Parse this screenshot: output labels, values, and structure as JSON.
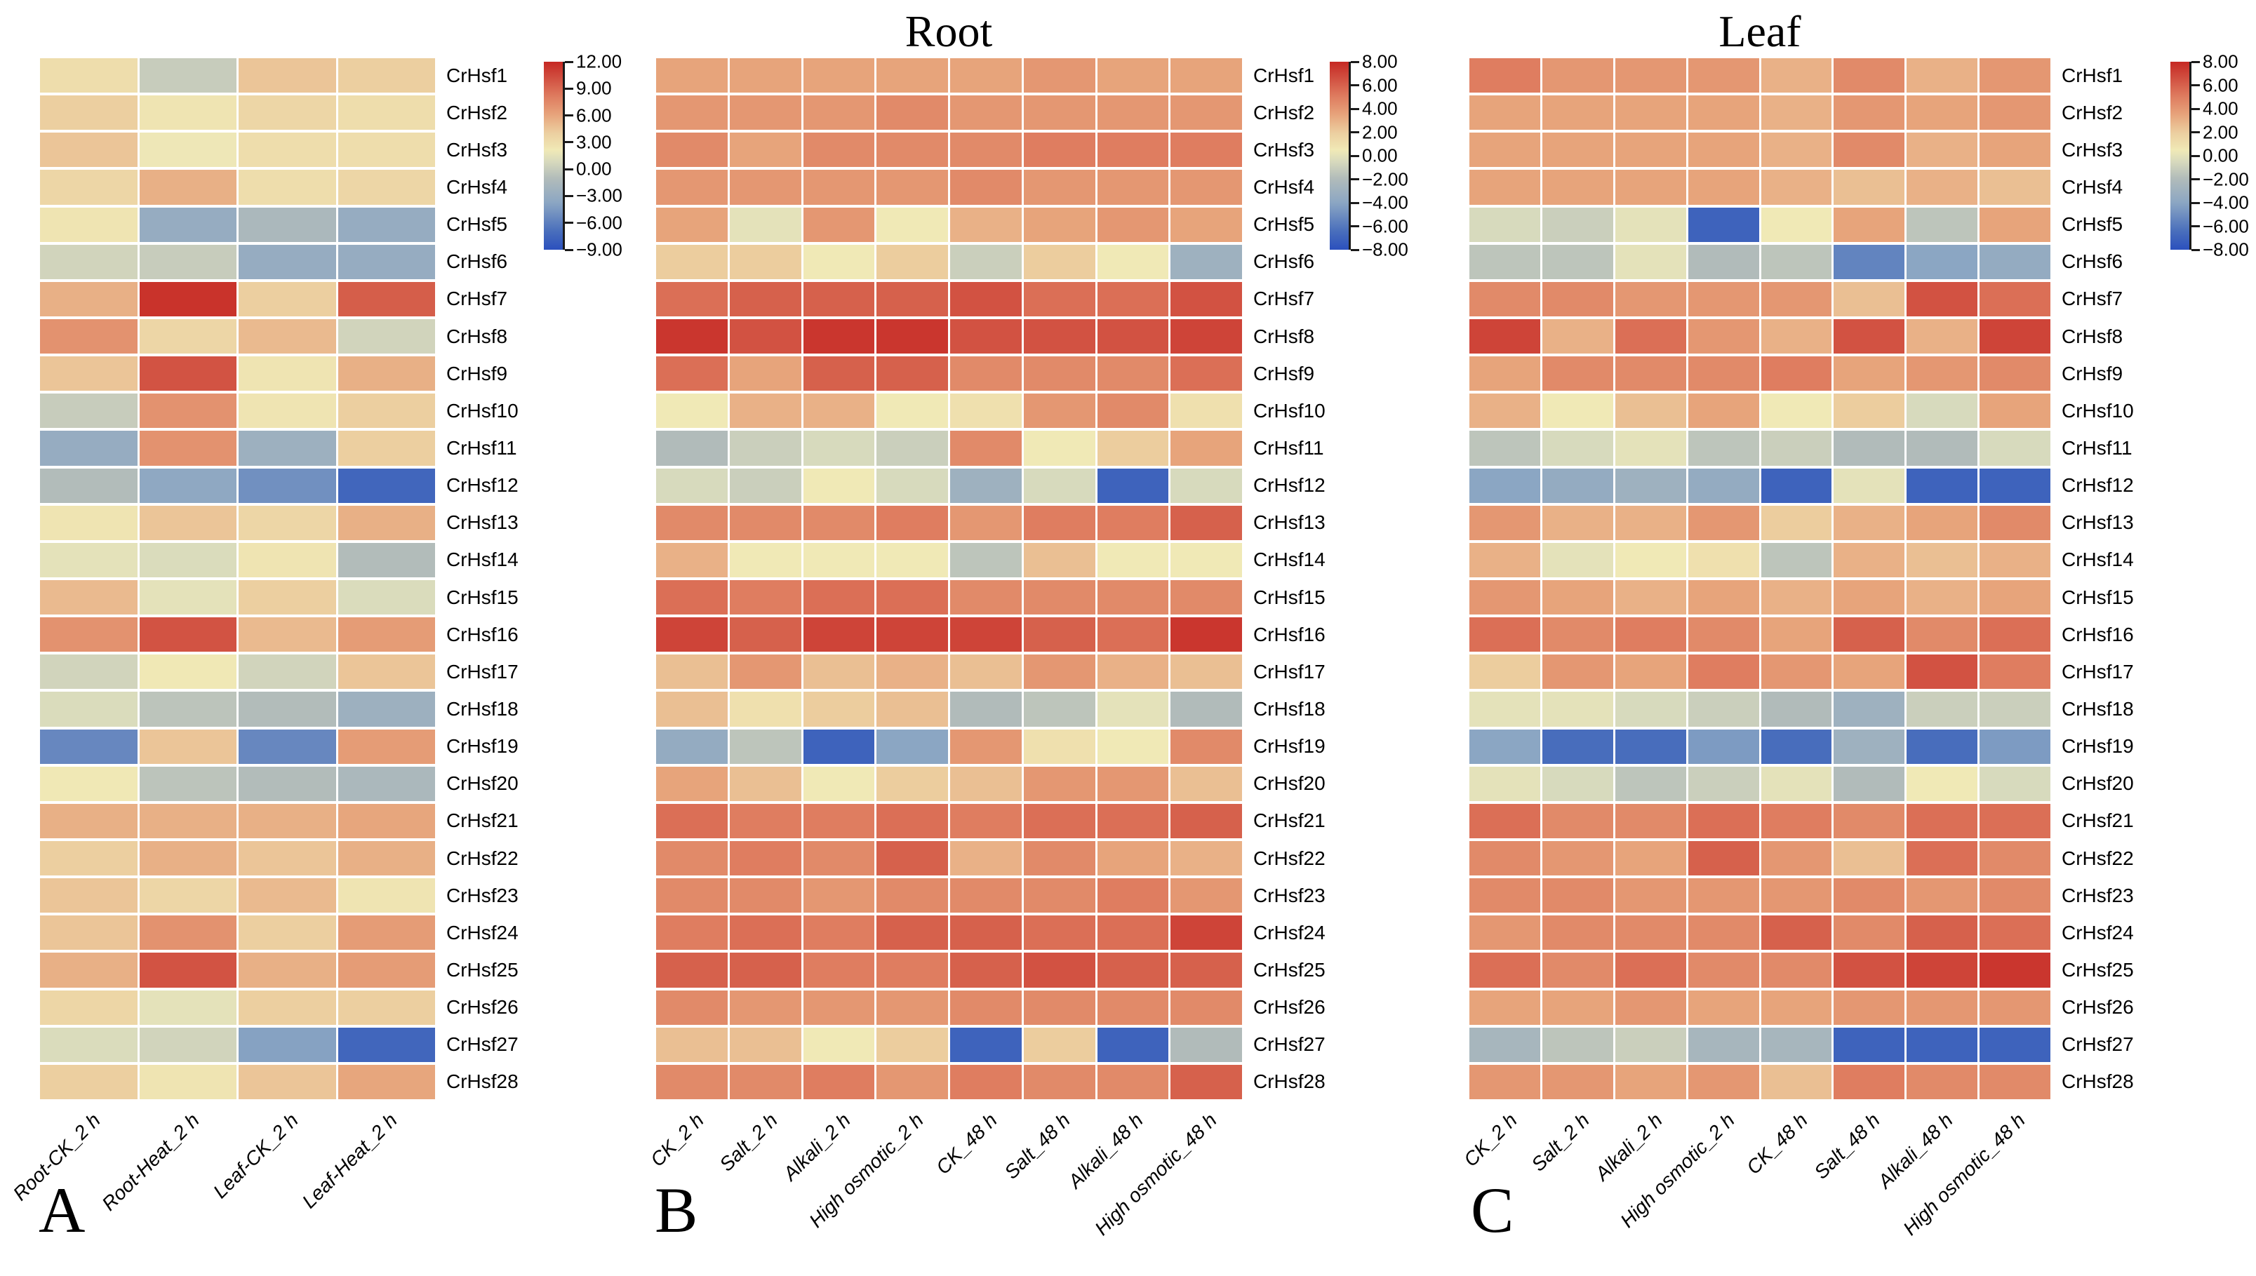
{
  "figure": {
    "background": "#ffffff",
    "colormap": {
      "name": "red-yellow-blue-heatmap",
      "stops": [
        [
          0.0,
          "#2b50bd"
        ],
        [
          0.1,
          "#4a6fbc"
        ],
        [
          0.25,
          "#8ba6c3"
        ],
        [
          0.38,
          "#b2bcba"
        ],
        [
          0.47,
          "#d8dabd"
        ],
        [
          0.53,
          "#f0e9b6"
        ],
        [
          0.62,
          "#eccfa0"
        ],
        [
          0.72,
          "#e7a37b"
        ],
        [
          0.82,
          "#de7a5e"
        ],
        [
          0.92,
          "#d04c3e"
        ],
        [
          1.0,
          "#c62823"
        ]
      ]
    }
  },
  "chart_data": [
    {
      "type": "heatmap",
      "id": "A",
      "panel_letter": "A",
      "title": "",
      "columns": [
        "Root-CK_2 h",
        "Root-Heat_2 h",
        "Leaf-CK_2 h",
        "Leaf-Heat_2 h"
      ],
      "rows": [
        "CrHsf1",
        "CrHsf2",
        "CrHsf3",
        "CrHsf4",
        "CrHsf5",
        "CrHsf6",
        "CrHsf7",
        "CrHsf8",
        "CrHsf9",
        "CrHsf10",
        "CrHsf11",
        "CrHsf12",
        "CrHsf13",
        "CrHsf14",
        "CrHsf15",
        "CrHsf16",
        "CrHsf17",
        "CrHsf18",
        "CrHsf19",
        "CrHsf20",
        "CrHsf21",
        "CrHsf22",
        "CrHsf23",
        "CrHsf24",
        "CrHsf25",
        "CrHsf26",
        "CrHsf27",
        "CrHsf28"
      ],
      "values": [
        [
          3,
          0,
          4.5,
          4
        ],
        [
          4,
          2.5,
          3.5,
          3
        ],
        [
          4.5,
          2,
          3,
          3
        ],
        [
          3.5,
          5.5,
          3,
          3.5
        ],
        [
          2.5,
          -3,
          -1.5,
          -3
        ],
        [
          0.5,
          0,
          -3,
          -3
        ],
        [
          5.5,
          11.5,
          4,
          9.5
        ],
        [
          7,
          3.5,
          5,
          0.5
        ],
        [
          4.5,
          10,
          2.5,
          5.5
        ],
        [
          0,
          7,
          2.5,
          4
        ],
        [
          -3,
          7,
          -2.5,
          4
        ],
        [
          -1,
          -3.5,
          -5,
          -7.5
        ],
        [
          2.5,
          4.5,
          3.5,
          5.5
        ],
        [
          1.5,
          1,
          2.5,
          -1
        ],
        [
          5,
          1.5,
          4,
          1
        ],
        [
          7,
          10,
          5,
          6.5
        ],
        [
          0.5,
          2.2,
          0.5,
          4.5
        ],
        [
          1,
          -0.5,
          -1,
          -2.5
        ],
        [
          -5.5,
          4.5,
          -5.5,
          6.5
        ],
        [
          2.2,
          -0.5,
          -1,
          -1.5
        ],
        [
          5.5,
          5.5,
          5.5,
          6
        ],
        [
          4,
          5.5,
          4.5,
          5.5
        ],
        [
          4.5,
          3.5,
          5,
          2.5
        ],
        [
          4.5,
          7,
          4,
          6.5
        ],
        [
          5.5,
          10,
          5.5,
          6.5
        ],
        [
          3.5,
          1.5,
          4,
          4
        ],
        [
          1,
          0.5,
          -4,
          -7.5
        ],
        [
          4,
          2.5,
          4.5,
          6
        ]
      ],
      "colorbar": {
        "vmin": -9,
        "vmax": 12,
        "tick_values": [
          12,
          9,
          6,
          3,
          0,
          -3,
          -6,
          -9
        ],
        "tick_labels": [
          "12.00",
          "9.00",
          "6.00",
          "3.00",
          "0.00",
          "−3.00",
          "−6.00",
          "−9.00"
        ]
      },
      "layout_hints": {
        "colorbar_position": "right",
        "row_labels": "right",
        "x_tick_rotation": 45,
        "grid": "white-gaps"
      }
    },
    {
      "type": "heatmap",
      "id": "B",
      "panel_letter": "B",
      "title": "Root",
      "columns": [
        "CK_2 h",
        "Salt_2 h",
        "Alkali_2 h",
        "High osmotic_2 h",
        "CK_48 h",
        "Salt_48 h",
        "Alkali_48 h",
        "High osmotic_48 h"
      ],
      "rows": [
        "CrHsf1",
        "CrHsf2",
        "CrHsf3",
        "CrHsf4",
        "CrHsf5",
        "CrHsf6",
        "CrHsf7",
        "CrHsf8",
        "CrHsf9",
        "CrHsf10",
        "CrHsf11",
        "CrHsf12",
        "CrHsf13",
        "CrHsf14",
        "CrHsf15",
        "CrHsf16",
        "CrHsf17",
        "CrHsf18",
        "CrHsf19",
        "CrHsf20",
        "CrHsf21",
        "CrHsf22",
        "CrHsf23",
        "CrHsf24",
        "CrHsf25",
        "CrHsf26",
        "CrHsf27",
        "CrHsf28"
      ],
      "values": [
        [
          3.5,
          3.5,
          3.5,
          3.5,
          3.5,
          4,
          3.5,
          3.5
        ],
        [
          4,
          4,
          4,
          4.5,
          4,
          4,
          4,
          4
        ],
        [
          4.5,
          3.5,
          4.5,
          4.5,
          4.5,
          5,
          5,
          5
        ],
        [
          4,
          4,
          4,
          4,
          4.5,
          4,
          4,
          4
        ],
        [
          3.5,
          0,
          4,
          0.5,
          3,
          3.5,
          4,
          3.5
        ],
        [
          2,
          2,
          0.5,
          2,
          -1,
          2,
          0.5,
          -3
        ],
        [
          5.5,
          6,
          6,
          6,
          6.5,
          5.5,
          5.5,
          6.5
        ],
        [
          7.5,
          6.5,
          7.5,
          7.5,
          6.5,
          6.5,
          6.5,
          7
        ],
        [
          5.5,
          3.5,
          6,
          6,
          4.5,
          4.5,
          4.5,
          5.5
        ],
        [
          0.5,
          3,
          3,
          0.5,
          1,
          4,
          4.5,
          1
        ],
        [
          -2,
          -1,
          -0.5,
          -1,
          4.5,
          0.5,
          2,
          3.5
        ],
        [
          -0.5,
          -1,
          0.5,
          -0.5,
          -3,
          -0.5,
          -7,
          -0.5
        ],
        [
          4.5,
          4.5,
          4.5,
          5,
          4,
          5,
          5,
          6
        ],
        [
          3,
          0.5,
          0.5,
          0.5,
          -1.5,
          2.5,
          0.5,
          0.5
        ],
        [
          5.5,
          5,
          5.5,
          5.5,
          4.5,
          4.5,
          4.5,
          4.5
        ],
        [
          7,
          6,
          7,
          7,
          7,
          6,
          5.5,
          7.5
        ],
        [
          2.5,
          4,
          2.5,
          3,
          2.5,
          4,
          3,
          2.5
        ],
        [
          2.5,
          1,
          2,
          2.5,
          -2,
          -1.5,
          0,
          -2
        ],
        [
          -3.5,
          -1.5,
          -7,
          -4,
          4,
          1,
          0.5,
          4.5
        ],
        [
          3.5,
          2.5,
          0.5,
          2,
          2.5,
          4,
          4,
          2.5
        ],
        [
          5.5,
          5,
          5,
          5.5,
          5,
          5.5,
          5.5,
          6
        ],
        [
          4.5,
          5,
          4.5,
          6,
          3,
          4.5,
          3.5,
          3
        ],
        [
          4.5,
          4.5,
          4,
          4.5,
          4.5,
          4.5,
          5,
          4
        ],
        [
          5,
          5.5,
          5,
          6,
          6,
          5.5,
          5.5,
          7
        ],
        [
          6,
          6,
          5,
          5,
          6,
          6.5,
          6,
          6
        ],
        [
          4.5,
          4,
          4,
          4,
          4.5,
          4.5,
          4.5,
          4.5
        ],
        [
          2.5,
          2.5,
          0.5,
          2,
          -7,
          2,
          -7,
          -2
        ],
        [
          4.5,
          4.5,
          5,
          4,
          5,
          4.5,
          4.5,
          6
        ]
      ],
      "colorbar": {
        "vmin": -8,
        "vmax": 8,
        "tick_values": [
          8,
          6,
          4,
          2,
          0,
          -2,
          -4,
          -6,
          -8
        ],
        "tick_labels": [
          "8.00",
          "6.00",
          "4.00",
          "2.00",
          "0.00",
          "−2.00",
          "−4.00",
          "−6.00",
          "−8.00"
        ]
      },
      "layout_hints": {
        "colorbar_position": "right",
        "row_labels": "right",
        "x_tick_rotation": 45,
        "grid": "white-gaps"
      }
    },
    {
      "type": "heatmap",
      "id": "C",
      "panel_letter": "C",
      "title": "Leaf",
      "columns": [
        "CK_2 h",
        "Salt_2 h",
        "Alkali_2 h",
        "High osmotic_2 h",
        "CK_48 h",
        "Salt_48 h",
        "Alkali_48 h",
        "High osmotic_48 h"
      ],
      "rows": [
        "CrHsf1",
        "CrHsf2",
        "CrHsf3",
        "CrHsf4",
        "CrHsf5",
        "CrHsf6",
        "CrHsf7",
        "CrHsf8",
        "CrHsf9",
        "CrHsf10",
        "CrHsf11",
        "CrHsf12",
        "CrHsf13",
        "CrHsf14",
        "CrHsf15",
        "CrHsf16",
        "CrHsf17",
        "CrHsf18",
        "CrHsf19",
        "CrHsf20",
        "CrHsf21",
        "CrHsf22",
        "CrHsf23",
        "CrHsf24",
        "CrHsf25",
        "CrHsf26",
        "CrHsf27",
        "CrHsf28"
      ],
      "values": [
        [
          5,
          4,
          4,
          4,
          3,
          4.5,
          3,
          4
        ],
        [
          3.5,
          3.5,
          3.5,
          3.5,
          3,
          4,
          3.5,
          4
        ],
        [
          3.5,
          3.5,
          3.5,
          3.5,
          3,
          4.5,
          3,
          3.5
        ],
        [
          3.5,
          3.5,
          3.5,
          3.5,
          3,
          2.5,
          3,
          2.5
        ],
        [
          -0.5,
          -1,
          0,
          -7,
          0.5,
          3.5,
          -1.5,
          3.5
        ],
        [
          -1.5,
          -1.5,
          0,
          -2,
          -1.5,
          -5.5,
          -4,
          -3.5
        ],
        [
          4.5,
          4.5,
          4,
          4,
          4,
          2.5,
          6.5,
          5.5
        ],
        [
          7,
          3,
          5.5,
          4,
          3,
          6.5,
          3,
          7
        ],
        [
          3.5,
          4.5,
          4.5,
          4.5,
          5,
          3.5,
          4,
          4.5
        ],
        [
          3,
          0.5,
          2.5,
          3.5,
          0.5,
          2,
          -0.5,
          3.5
        ],
        [
          -1.5,
          -0.5,
          0,
          -1.5,
          -1,
          -2,
          -2,
          -0.5
        ],
        [
          -4,
          -3.5,
          -3,
          -3.5,
          -7,
          0,
          -7,
          -7
        ],
        [
          4,
          3,
          3,
          4,
          2,
          3,
          3.5,
          4.5
        ],
        [
          3,
          0,
          0.5,
          1,
          -1.5,
          3,
          2.5,
          3
        ],
        [
          4,
          3.5,
          3,
          3.5,
          3,
          3.5,
          3,
          3.5
        ],
        [
          5.5,
          4.5,
          5,
          4.5,
          3.5,
          6,
          4.5,
          5.5
        ],
        [
          2,
          4,
          3.5,
          5,
          4,
          3.5,
          6.5,
          5
        ],
        [
          0,
          0,
          -0.5,
          -1,
          -2,
          -3,
          -1,
          -1
        ],
        [
          -4,
          -6.5,
          -6.5,
          -4.5,
          -6.5,
          -3,
          -6.5,
          -4.5
        ],
        [
          0,
          -0.5,
          -1.5,
          -1,
          0,
          -2,
          0.5,
          -0.5
        ],
        [
          5.5,
          4.5,
          4.5,
          5.5,
          5,
          4.5,
          5.5,
          5.5
        ],
        [
          4.5,
          4,
          3.5,
          6,
          4,
          2.5,
          5.5,
          4.5
        ],
        [
          4.5,
          4.5,
          4,
          4,
          4,
          4.5,
          4,
          4.5
        ],
        [
          4,
          4.5,
          4.5,
          4.5,
          6,
          4.5,
          6,
          5.5
        ],
        [
          5.5,
          4.5,
          5.5,
          4.5,
          4.5,
          6.5,
          7,
          7.5
        ],
        [
          3.5,
          3.5,
          4,
          3.5,
          3.5,
          4,
          4,
          4
        ],
        [
          -2.5,
          -1.5,
          -1,
          -2.5,
          -2.5,
          -7,
          -7,
          -7
        ],
        [
          4,
          4,
          3.5,
          4,
          2.5,
          5,
          4.5,
          4.5
        ]
      ],
      "colorbar": {
        "vmin": -8,
        "vmax": 8,
        "tick_values": [
          8,
          6,
          4,
          2,
          0,
          -2,
          -4,
          -6,
          -8
        ],
        "tick_labels": [
          "8.00",
          "6.00",
          "4.00",
          "2.00",
          "0.00",
          "−2.00",
          "−4.00",
          "−6.00",
          "−8.00"
        ]
      },
      "layout_hints": {
        "colorbar_position": "right",
        "row_labels": "right",
        "x_tick_rotation": 45,
        "grid": "white-gaps"
      }
    }
  ]
}
